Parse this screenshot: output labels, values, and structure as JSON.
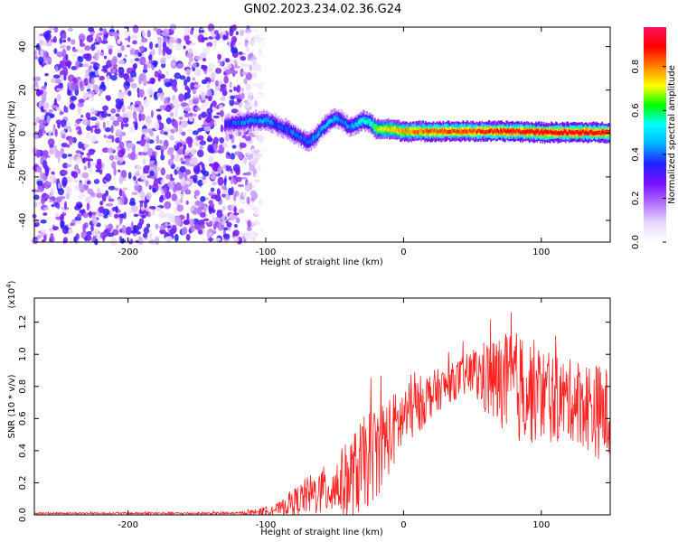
{
  "title": "GN02.2023.234.02.36.G24",
  "chart_data": [
    {
      "type": "heatmap",
      "xlabel": "Height of straight line (km)",
      "ylabel": "Frequency (Hz)",
      "xlim": [
        -268,
        150
      ],
      "ylim": [
        -50,
        49
      ],
      "xticks": [
        -200,
        -100,
        0,
        100
      ],
      "yticks": [
        -40,
        -20,
        0,
        20,
        40
      ],
      "colorbar": {
        "label": "Normalized spectral amplitude",
        "range": [
          0,
          0.98
        ],
        "ticks": [
          0.0,
          0.2,
          0.4,
          0.6,
          0.8
        ],
        "colormap": [
          "#ffffff",
          "#e8d8ff",
          "#b070ff",
          "#7a10ff",
          "#2020ff",
          "#00b0ff",
          "#00ffff",
          "#00ff00",
          "#ffff00",
          "#ff8000",
          "#ff0000",
          "#ff1060"
        ]
      },
      "noise_region": [
        -268,
        -115
      ],
      "ridge": {
        "x": [
          -130,
          -120,
          -110,
          -100,
          -95,
          -90,
          -85,
          -80,
          -75,
          -70,
          -65,
          -60,
          -55,
          -50,
          -45,
          -40,
          -35,
          -30,
          -25,
          -20,
          -10,
          0,
          20,
          40,
          60,
          80,
          100,
          120,
          150
        ],
        "freq": [
          4,
          5,
          6,
          6,
          5,
          3,
          2,
          0,
          -2,
          -4,
          -2,
          2,
          5,
          7,
          6,
          3,
          4,
          6,
          5,
          2,
          2,
          1,
          1,
          1,
          1,
          1,
          0.5,
          0.5,
          0.5
        ],
        "amplitude": [
          0.35,
          0.4,
          0.42,
          0.45,
          0.4,
          0.38,
          0.4,
          0.42,
          0.4,
          0.42,
          0.45,
          0.45,
          0.48,
          0.45,
          0.42,
          0.42,
          0.5,
          0.55,
          0.55,
          0.7,
          0.75,
          0.8,
          0.85,
          0.85,
          0.88,
          0.9,
          0.92,
          0.92,
          0.9
        ]
      }
    },
    {
      "type": "line",
      "xlabel": "Height of straight line (km)",
      "ylabel": "SNR (10 * v/v)",
      "scale_label": "(x10",
      "scale_exp": "4",
      "scale_close": ")",
      "xlim": [
        -268,
        150
      ],
      "ylim": [
        0,
        1.35
      ],
      "xticks": [
        -200,
        -100,
        0,
        100
      ],
      "yticks": [
        0.0,
        0.2,
        0.4,
        0.6,
        0.8,
        1.0,
        1.2
      ],
      "color": "#ff2020",
      "envelope": {
        "x": [
          -268,
          -120,
          -105,
          -90,
          -80,
          -70,
          -60,
          -50,
          -40,
          -30,
          -20,
          -10,
          0,
          10,
          20,
          30,
          40,
          50,
          60,
          70,
          80,
          90,
          100,
          110,
          120,
          130,
          140,
          150
        ],
        "mean": [
          0.01,
          0.01,
          0.02,
          0.04,
          0.08,
          0.12,
          0.14,
          0.18,
          0.22,
          0.3,
          0.4,
          0.5,
          0.6,
          0.68,
          0.75,
          0.8,
          0.85,
          0.88,
          0.85,
          0.82,
          0.8,
          0.78,
          0.75,
          0.72,
          0.72,
          0.7,
          0.65,
          0.62
        ],
        "spread": [
          0.005,
          0.008,
          0.02,
          0.04,
          0.08,
          0.12,
          0.15,
          0.18,
          0.25,
          0.3,
          0.3,
          0.25,
          0.2,
          0.18,
          0.15,
          0.12,
          0.12,
          0.15,
          0.25,
          0.3,
          0.35,
          0.35,
          0.3,
          0.28,
          0.25,
          0.28,
          0.3,
          0.3
        ]
      }
    }
  ]
}
